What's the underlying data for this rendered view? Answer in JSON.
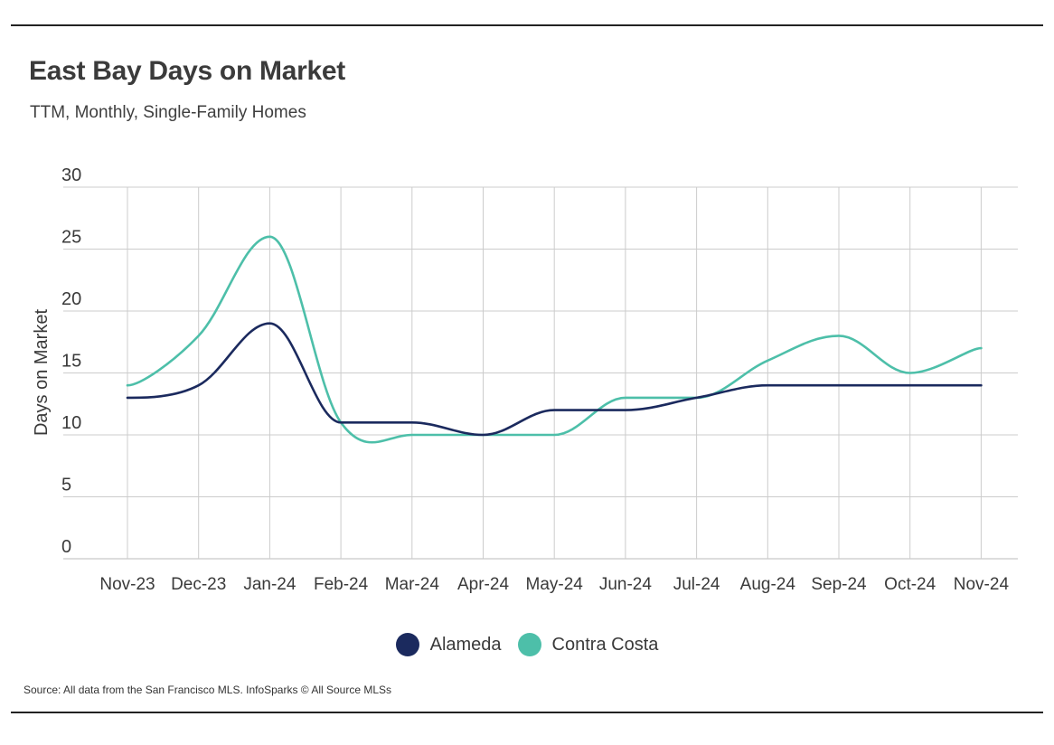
{
  "header": {
    "title": "East Bay Days on Market",
    "subtitle": "TTM, Monthly, Single-Family Homes"
  },
  "footer": {
    "source": "Source:  All data from the San Francisco MLS. InfoSparks © All Source MLSs"
  },
  "colors": {
    "alameda": "#1b2a5e",
    "contra_costa": "#4dbfa9",
    "grid": "#cccccc",
    "text": "#3a3a3a"
  },
  "chart_data": {
    "type": "line",
    "title": "East Bay Days on Market",
    "subtitle": "TTM, Monthly, Single-Family Homes",
    "xlabel": "",
    "ylabel": "Days on Market",
    "ylim": [
      0,
      30
    ],
    "yticks": [
      0,
      5,
      10,
      15,
      20,
      25,
      30
    ],
    "grid": true,
    "legend": "bottom-center",
    "categories": [
      "Nov-23",
      "Dec-23",
      "Jan-24",
      "Feb-24",
      "Mar-24",
      "Apr-24",
      "May-24",
      "Jun-24",
      "Jul-24",
      "Aug-24",
      "Sep-24",
      "Oct-24",
      "Nov-24"
    ],
    "series": [
      {
        "name": "Alameda",
        "color": "#1b2a5e",
        "values": [
          13,
          14,
          19,
          11,
          11,
          10,
          12,
          12,
          13,
          14,
          14,
          14,
          14
        ]
      },
      {
        "name": "Contra Costa",
        "color": "#4dbfa9",
        "values": [
          14,
          18,
          26,
          11,
          10,
          10,
          10,
          13,
          13,
          16,
          18,
          15,
          17
        ]
      }
    ]
  }
}
